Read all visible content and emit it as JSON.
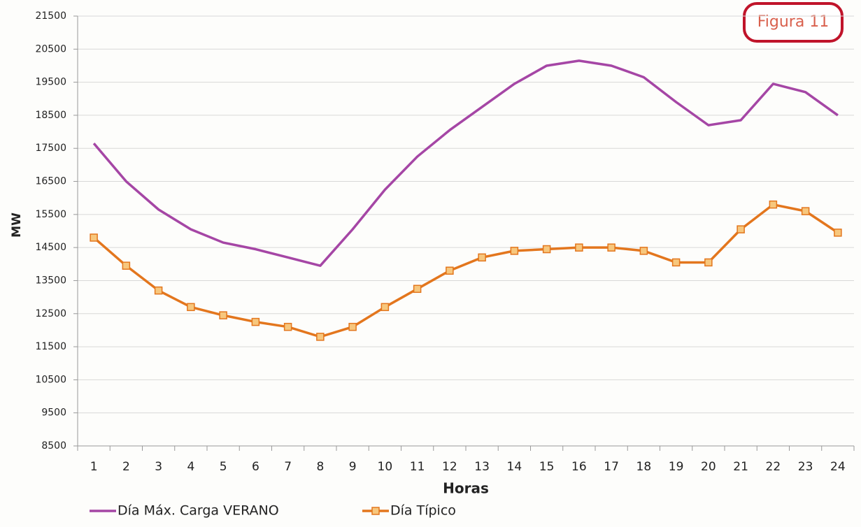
{
  "chart_data": {
    "type": "line",
    "annotation": "Figura 11",
    "x_label": "Horas",
    "y_label": "MW",
    "categories": [
      1,
      2,
      3,
      4,
      5,
      6,
      7,
      8,
      9,
      10,
      11,
      12,
      13,
      14,
      15,
      16,
      17,
      18,
      19,
      20,
      21,
      22,
      23,
      24
    ],
    "series": [
      {
        "name": "Día Máx. Carga VERANO",
        "color": "#a546a5",
        "marker": false,
        "values": [
          17650,
          16500,
          15650,
          15050,
          14650,
          14450,
          14200,
          13950,
          15050,
          16250,
          17250,
          18050,
          18750,
          19450,
          20000,
          20150,
          20000,
          19650,
          18900,
          18200,
          18350,
          19450,
          19200,
          18500
        ]
      },
      {
        "name": "Día Típico",
        "color": "#e3761d",
        "marker": true,
        "values": [
          14800,
          13950,
          13200,
          12700,
          12450,
          12250,
          12100,
          11800,
          12100,
          12700,
          13250,
          13800,
          14200,
          14400,
          14450,
          14500,
          14500,
          14400,
          14050,
          14050,
          15050,
          15800,
          15600,
          14950
        ]
      }
    ],
    "ylim": [
      8500,
      21500
    ],
    "yticks": [
      8500,
      9500,
      10500,
      11500,
      12500,
      13500,
      14500,
      15500,
      16500,
      17500,
      18500,
      19500,
      20500,
      21500
    ],
    "grid": true,
    "legend": "bottom"
  }
}
